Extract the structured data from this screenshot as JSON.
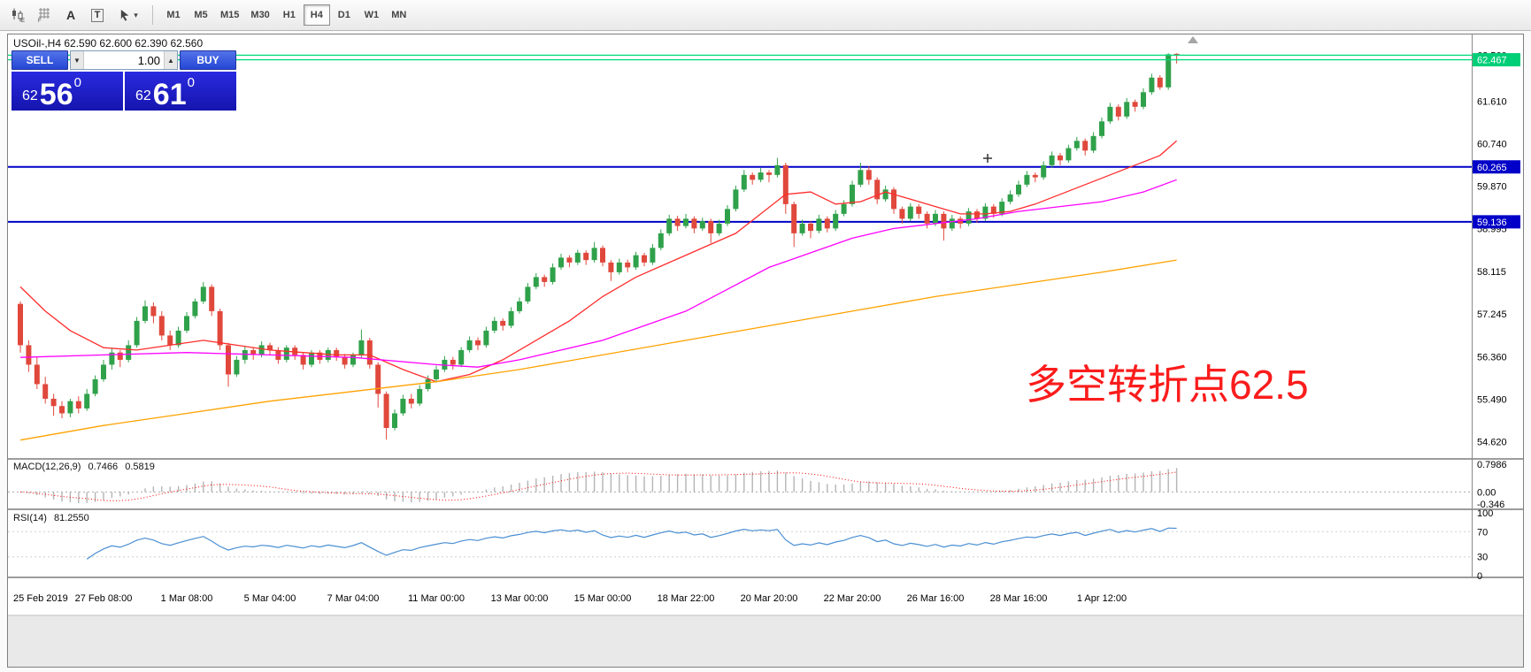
{
  "icons": {
    "caret_down": "▾",
    "volume_dropdown": "▼",
    "volume_up": "▲"
  },
  "toolbar": {
    "text_tool_label": "A",
    "textbox_tool_label": "T",
    "timeframes": [
      "M1",
      "M5",
      "M15",
      "M30",
      "H1",
      "H4",
      "D1",
      "W1",
      "MN"
    ],
    "active_timeframe": "H4"
  },
  "chart": {
    "title": "USOil-,H4  62.590 62.600 62.390 62.560",
    "annotation": "多空转折点62.5"
  },
  "trade_panel": {
    "sell_label": "SELL",
    "buy_label": "BUY",
    "volume": "1.00",
    "sell_price": {
      "int": "62",
      "big": "56",
      "sup": "0"
    },
    "buy_price": {
      "int": "62",
      "big": "61",
      "sup": "0"
    }
  },
  "chart_data": {
    "type": "candlestick",
    "symbol": "USOil-",
    "timeframe": "H4",
    "title": "USOil-,H4  62.590 62.600 62.390 62.560",
    "ohlc_current": {
      "open": "62.590",
      "high": "62.600",
      "low": "62.390",
      "close": "62.560"
    },
    "ylim": [
      54.3,
      62.95
    ],
    "candles": [
      [
        57.45,
        57.5,
        56.45,
        56.6
      ],
      [
        56.6,
        56.7,
        56.05,
        56.2
      ],
      [
        56.2,
        56.35,
        55.7,
        55.8
      ],
      [
        55.8,
        55.95,
        55.4,
        55.5
      ],
      [
        55.5,
        55.6,
        55.15,
        55.35
      ],
      [
        55.35,
        55.45,
        55.1,
        55.2
      ],
      [
        55.2,
        55.5,
        55.12,
        55.45
      ],
      [
        55.45,
        55.55,
        55.2,
        55.3
      ],
      [
        55.3,
        55.7,
        55.25,
        55.6
      ],
      [
        55.6,
        55.98,
        55.55,
        55.9
      ],
      [
        55.9,
        56.3,
        55.85,
        56.2
      ],
      [
        56.2,
        56.55,
        56.1,
        56.45
      ],
      [
        56.45,
        56.5,
        56.15,
        56.3
      ],
      [
        56.3,
        56.7,
        56.25,
        56.6
      ],
      [
        56.6,
        57.18,
        56.55,
        57.1
      ],
      [
        57.1,
        57.52,
        57.05,
        57.4
      ],
      [
        57.4,
        57.48,
        57.05,
        57.2
      ],
      [
        57.2,
        57.3,
        56.7,
        56.8
      ],
      [
        56.8,
        56.9,
        56.5,
        56.6
      ],
      [
        56.6,
        56.98,
        56.55,
        56.9
      ],
      [
        56.9,
        57.28,
        56.85,
        57.2
      ],
      [
        57.2,
        57.56,
        57.15,
        57.5
      ],
      [
        57.5,
        57.9,
        57.45,
        57.8
      ],
      [
        57.8,
        57.85,
        57.2,
        57.3
      ],
      [
        57.3,
        57.35,
        56.5,
        56.6
      ],
      [
        56.6,
        56.65,
        55.75,
        56.0
      ],
      [
        56.0,
        56.38,
        55.95,
        56.3
      ],
      [
        56.3,
        56.58,
        56.22,
        56.5
      ],
      [
        56.5,
        56.55,
        56.3,
        56.4
      ],
      [
        56.4,
        56.68,
        56.35,
        56.6
      ],
      [
        56.6,
        56.65,
        56.4,
        56.5
      ],
      [
        56.5,
        56.56,
        56.22,
        56.3
      ],
      [
        56.3,
        56.6,
        56.25,
        56.55
      ],
      [
        56.55,
        56.6,
        56.3,
        56.4
      ],
      [
        56.4,
        56.45,
        56.1,
        56.2
      ],
      [
        56.2,
        56.5,
        56.15,
        56.45
      ],
      [
        56.45,
        56.5,
        56.22,
        56.3
      ],
      [
        56.3,
        56.55,
        56.25,
        56.5
      ],
      [
        56.5,
        56.55,
        56.28,
        56.35
      ],
      [
        56.35,
        56.42,
        56.12,
        56.2
      ],
      [
        56.2,
        56.45,
        56.15,
        56.4
      ],
      [
        56.4,
        56.92,
        56.35,
        56.7
      ],
      [
        56.7,
        56.75,
        56.12,
        56.2
      ],
      [
        56.2,
        56.25,
        55.32,
        55.6
      ],
      [
        55.6,
        55.65,
        54.66,
        54.9
      ],
      [
        54.9,
        55.28,
        54.85,
        55.2
      ],
      [
        55.2,
        55.58,
        55.15,
        55.5
      ],
      [
        55.5,
        55.6,
        55.3,
        55.4
      ],
      [
        55.4,
        55.78,
        55.35,
        55.7
      ],
      [
        55.7,
        55.98,
        55.65,
        55.9
      ],
      [
        55.9,
        56.18,
        55.85,
        56.1
      ],
      [
        56.1,
        56.38,
        56.05,
        56.3
      ],
      [
        56.3,
        56.36,
        56.1,
        56.2
      ],
      [
        56.2,
        56.56,
        56.15,
        56.5
      ],
      [
        56.5,
        56.78,
        56.45,
        56.7
      ],
      [
        56.7,
        56.76,
        56.5,
        56.6
      ],
      [
        56.6,
        56.98,
        56.55,
        56.9
      ],
      [
        56.9,
        57.18,
        56.85,
        57.1
      ],
      [
        57.1,
        57.15,
        56.9,
        57.0
      ],
      [
        57.0,
        57.38,
        56.95,
        57.3
      ],
      [
        57.3,
        57.58,
        57.25,
        57.5
      ],
      [
        57.5,
        57.88,
        57.45,
        57.8
      ],
      [
        57.8,
        58.08,
        57.75,
        58.0
      ],
      [
        58.0,
        58.05,
        57.8,
        57.9
      ],
      [
        57.9,
        58.28,
        57.85,
        58.2
      ],
      [
        58.2,
        58.48,
        58.15,
        58.4
      ],
      [
        58.4,
        58.45,
        58.2,
        58.3
      ],
      [
        58.3,
        58.56,
        58.25,
        58.5
      ],
      [
        58.5,
        58.55,
        58.25,
        58.35
      ],
      [
        58.35,
        58.72,
        58.3,
        58.6
      ],
      [
        58.6,
        58.65,
        58.22,
        58.3
      ],
      [
        58.3,
        58.35,
        57.92,
        58.1
      ],
      [
        58.1,
        58.38,
        58.05,
        58.3
      ],
      [
        58.3,
        58.36,
        58.1,
        58.2
      ],
      [
        58.2,
        58.52,
        58.15,
        58.45
      ],
      [
        58.45,
        58.5,
        58.22,
        58.3
      ],
      [
        58.3,
        58.68,
        58.25,
        58.6
      ],
      [
        58.6,
        58.98,
        58.55,
        58.9
      ],
      [
        58.9,
        59.28,
        58.85,
        59.2
      ],
      [
        59.2,
        59.26,
        58.95,
        59.05
      ],
      [
        59.05,
        59.3,
        59.0,
        59.2
      ],
      [
        59.2,
        59.25,
        58.9,
        59.0
      ],
      [
        59.0,
        59.22,
        58.95,
        59.15
      ],
      [
        59.15,
        59.2,
        58.7,
        58.9
      ],
      [
        58.9,
        59.18,
        58.85,
        59.1
      ],
      [
        59.1,
        59.48,
        59.05,
        59.4
      ],
      [
        59.4,
        59.88,
        59.35,
        59.8
      ],
      [
        59.8,
        60.2,
        59.75,
        60.1
      ],
      [
        60.1,
        60.15,
        59.9,
        60.0
      ],
      [
        60.0,
        60.24,
        59.95,
        60.15
      ],
      [
        60.15,
        60.2,
        59.95,
        60.1
      ],
      [
        60.1,
        60.45,
        60.05,
        60.3
      ],
      [
        60.3,
        60.35,
        59.3,
        59.5
      ],
      [
        59.5,
        59.55,
        58.62,
        58.9
      ],
      [
        58.9,
        59.18,
        58.85,
        59.1
      ],
      [
        59.1,
        59.15,
        58.8,
        58.95
      ],
      [
        58.95,
        59.28,
        58.9,
        59.2
      ],
      [
        59.2,
        59.25,
        58.92,
        59.0
      ],
      [
        59.0,
        59.38,
        58.95,
        59.3
      ],
      [
        59.3,
        59.58,
        59.25,
        59.5
      ],
      [
        59.5,
        59.98,
        59.45,
        59.9
      ],
      [
        59.9,
        60.35,
        59.85,
        60.2
      ],
      [
        60.2,
        60.28,
        59.9,
        60.0
      ],
      [
        60.0,
        60.05,
        59.5,
        59.6
      ],
      [
        59.6,
        59.88,
        59.55,
        59.8
      ],
      [
        59.8,
        59.85,
        59.3,
        59.4
      ],
      [
        59.4,
        59.45,
        59.1,
        59.2
      ],
      [
        59.2,
        59.52,
        59.15,
        59.45
      ],
      [
        59.45,
        59.5,
        59.2,
        59.3
      ],
      [
        59.3,
        59.35,
        59.0,
        59.1
      ],
      [
        59.1,
        59.38,
        59.05,
        59.3
      ],
      [
        59.3,
        59.35,
        58.75,
        59.0
      ],
      [
        59.0,
        59.28,
        58.95,
        59.2
      ],
      [
        59.2,
        59.25,
        59.0,
        59.1
      ],
      [
        59.1,
        59.42,
        59.05,
        59.35
      ],
      [
        59.35,
        59.4,
        59.12,
        59.2
      ],
      [
        59.2,
        59.52,
        59.15,
        59.45
      ],
      [
        59.45,
        59.5,
        59.22,
        59.3
      ],
      [
        59.3,
        59.62,
        59.25,
        59.55
      ],
      [
        59.55,
        59.78,
        59.5,
        59.7
      ],
      [
        59.7,
        59.98,
        59.65,
        59.9
      ],
      [
        59.9,
        60.18,
        59.85,
        60.1
      ],
      [
        60.1,
        60.15,
        59.95,
        60.05
      ],
      [
        60.05,
        60.38,
        60.0,
        60.3
      ],
      [
        60.3,
        60.58,
        60.25,
        60.5
      ],
      [
        60.5,
        60.55,
        60.3,
        60.4
      ],
      [
        60.4,
        60.72,
        60.35,
        60.65
      ],
      [
        60.65,
        60.88,
        60.6,
        60.8
      ],
      [
        60.8,
        60.85,
        60.5,
        60.6
      ],
      [
        60.6,
        60.98,
        60.55,
        60.9
      ],
      [
        60.9,
        61.28,
        60.85,
        61.2
      ],
      [
        61.2,
        61.58,
        61.15,
        61.5
      ],
      [
        61.5,
        61.55,
        61.22,
        61.3
      ],
      [
        61.3,
        61.68,
        61.25,
        61.6
      ],
      [
        61.6,
        61.65,
        61.4,
        61.5
      ],
      [
        61.5,
        61.88,
        61.45,
        61.8
      ],
      [
        61.8,
        62.18,
        61.75,
        62.1
      ],
      [
        62.1,
        62.15,
        61.85,
        61.9
      ],
      [
        61.9,
        62.6,
        61.85,
        62.58
      ],
      [
        62.59,
        62.6,
        62.39,
        62.56
      ]
    ],
    "time_labels": [
      {
        "i": 0,
        "label": "25 Feb 2019"
      },
      {
        "i": 10,
        "label": "27 Feb 08:00"
      },
      {
        "i": 20,
        "label": "1 Mar 08:00"
      },
      {
        "i": 30,
        "label": "5 Mar 04:00"
      },
      {
        "i": 40,
        "label": "7 Mar 04:00"
      },
      {
        "i": 50,
        "label": "11 Mar 00:00"
      },
      {
        "i": 60,
        "label": "13 Mar 00:00"
      },
      {
        "i": 70,
        "label": "15 Mar 00:00"
      },
      {
        "i": 80,
        "label": "18 Mar 22:00"
      },
      {
        "i": 90,
        "label": "20 Mar 20:00"
      },
      {
        "i": 100,
        "label": "22 Mar 20:00"
      },
      {
        "i": 110,
        "label": "26 Mar 16:00"
      },
      {
        "i": 120,
        "label": "28 Mar 16:00"
      },
      {
        "i": 130,
        "label": "1 Apr 12:00"
      }
    ],
    "price_axis_labels": [
      "62.560",
      "61.610",
      "60.740",
      "59.870",
      "58.995",
      "58.115",
      "57.245",
      "56.360",
      "55.490",
      "54.620"
    ],
    "price_tags": [
      {
        "label": "62.467",
        "price": 62.467,
        "color": "#00cf78"
      },
      {
        "label": "60.265",
        "price": 60.265,
        "color": "#0000c8"
      },
      {
        "label": "59.136",
        "price": 59.136,
        "color": "#0000c8"
      }
    ],
    "hlines": [
      {
        "price": 62.56,
        "color": "#00dc7d",
        "width": 1.4,
        "z": "over"
      },
      {
        "price": 62.467,
        "color": "#00dc7d",
        "width": 1.4,
        "z": "over"
      },
      {
        "price": 60.265,
        "color": "#0000c8",
        "width": 2,
        "z": "under"
      },
      {
        "price": 59.136,
        "color": "#0000c8",
        "width": 2,
        "z": "under"
      }
    ],
    "ma_lines": [
      {
        "name": "ma-fast-line",
        "color": "#ff2d2d",
        "points": [
          [
            0,
            57.8
          ],
          [
            3,
            57.3
          ],
          [
            6,
            56.9
          ],
          [
            10,
            56.55
          ],
          [
            14,
            56.5
          ],
          [
            18,
            56.6
          ],
          [
            22,
            56.7
          ],
          [
            26,
            56.6
          ],
          [
            30,
            56.5
          ],
          [
            34,
            56.45
          ],
          [
            38,
            56.4
          ],
          [
            42,
            56.4
          ],
          [
            46,
            56.1
          ],
          [
            50,
            55.85
          ],
          [
            54,
            56.0
          ],
          [
            58,
            56.3
          ],
          [
            62,
            56.7
          ],
          [
            66,
            57.1
          ],
          [
            70,
            57.6
          ],
          [
            74,
            58.0
          ],
          [
            78,
            58.3
          ],
          [
            82,
            58.6
          ],
          [
            86,
            58.9
          ],
          [
            89,
            59.3
          ],
          [
            92,
            59.7
          ],
          [
            95,
            59.75
          ],
          [
            98,
            59.5
          ],
          [
            101,
            59.55
          ],
          [
            104,
            59.75
          ],
          [
            107,
            59.6
          ],
          [
            110,
            59.45
          ],
          [
            113,
            59.3
          ],
          [
            116,
            59.3
          ],
          [
            119,
            59.35
          ],
          [
            122,
            59.5
          ],
          [
            125,
            59.7
          ],
          [
            128,
            59.9
          ],
          [
            131,
            60.1
          ],
          [
            134,
            60.3
          ],
          [
            137,
            60.5
          ],
          [
            139,
            60.8
          ]
        ]
      },
      {
        "name": "ma-mid-line",
        "color": "#ff00ff",
        "points": [
          [
            0,
            56.35
          ],
          [
            10,
            56.4
          ],
          [
            20,
            56.45
          ],
          [
            30,
            56.4
          ],
          [
            40,
            56.35
          ],
          [
            50,
            56.2
          ],
          [
            55,
            56.15
          ],
          [
            60,
            56.3
          ],
          [
            65,
            56.5
          ],
          [
            70,
            56.7
          ],
          [
            75,
            57.0
          ],
          [
            80,
            57.3
          ],
          [
            85,
            57.75
          ],
          [
            90,
            58.2
          ],
          [
            95,
            58.5
          ],
          [
            100,
            58.8
          ],
          [
            105,
            59.0
          ],
          [
            110,
            59.1
          ],
          [
            115,
            59.2
          ],
          [
            120,
            59.35
          ],
          [
            125,
            59.45
          ],
          [
            130,
            59.55
          ],
          [
            135,
            59.75
          ],
          [
            139,
            60.0
          ]
        ]
      },
      {
        "name": "ma-slow-line",
        "color": "#ffa200",
        "points": [
          [
            0,
            54.65
          ],
          [
            10,
            54.95
          ],
          [
            20,
            55.2
          ],
          [
            30,
            55.45
          ],
          [
            40,
            55.65
          ],
          [
            50,
            55.85
          ],
          [
            60,
            56.1
          ],
          [
            70,
            56.4
          ],
          [
            80,
            56.7
          ],
          [
            90,
            57.0
          ],
          [
            100,
            57.3
          ],
          [
            110,
            57.6
          ],
          [
            120,
            57.85
          ],
          [
            130,
            58.1
          ],
          [
            139,
            58.35
          ]
        ]
      }
    ],
    "indicators": {
      "macd": {
        "label": "MACD(12,26,9)",
        "value_main": "0.7466",
        "value_signal": "0.5819",
        "params": {
          "fast": 12,
          "slow": 26,
          "signal": 9
        },
        "ylim": [
          -0.45,
          0.88
        ],
        "axis_labels": [
          "0.7986",
          "0.00",
          "-0.346"
        ]
      },
      "rsi": {
        "label": "RSI(14)",
        "value": "81.2550",
        "period": 14,
        "levels": [
          100,
          70,
          30,
          0
        ],
        "ylim": [
          0,
          100
        ]
      }
    },
    "colors": {
      "up": "#2fa14a",
      "down": "#e0483c",
      "macd_hist": "#b4b4b4",
      "macd_signal": "#ff0000",
      "rsi": "#4a8fd2",
      "hline_green": "#00dc7d",
      "hline_blue": "#0000c8"
    }
  }
}
